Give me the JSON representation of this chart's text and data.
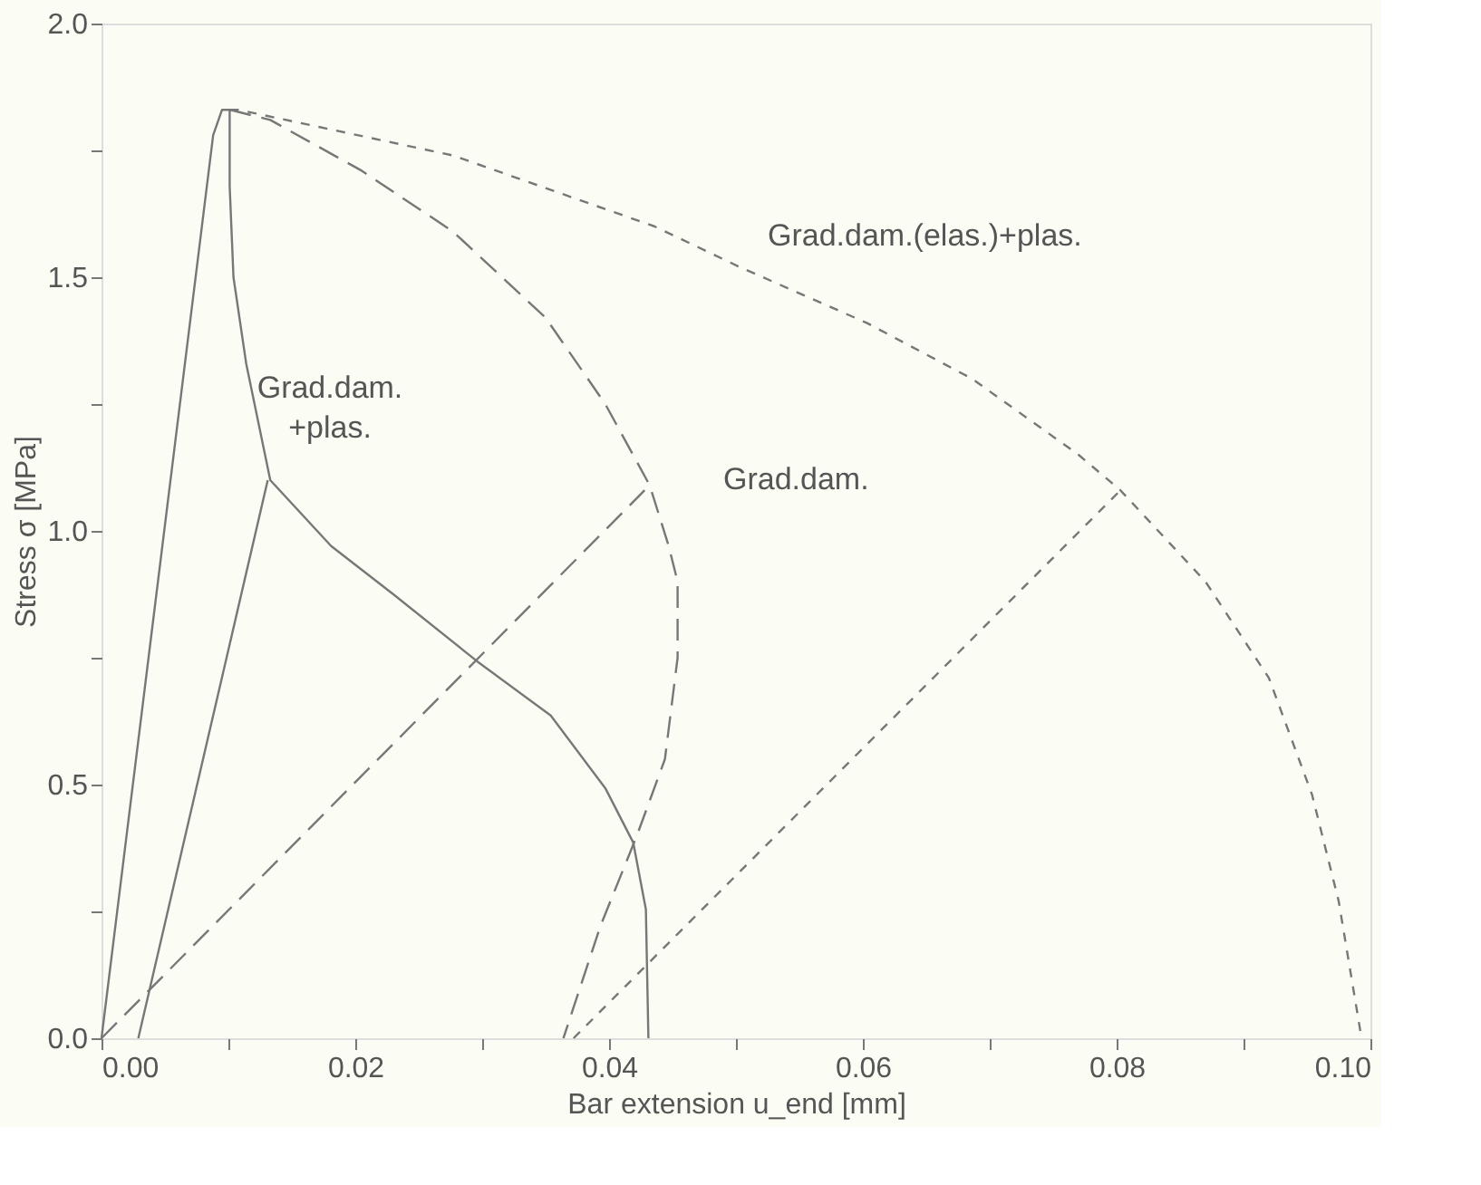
{
  "chart_data": {
    "type": "line",
    "xlabel": "Bar extension u_end [mm]",
    "ylabel": "Stress σ [MPa]",
    "xlim": [
      0,
      0.1
    ],
    "ylim": [
      0,
      2.0
    ],
    "xticks": [
      {
        "value": 0,
        "label": "0.00"
      },
      {
        "value": 0.01,
        "label": null
      },
      {
        "value": 0.02,
        "label": "0.02"
      },
      {
        "value": 0.03,
        "label": null
      },
      {
        "value": 0.04,
        "label": "0.04"
      },
      {
        "value": 0.05,
        "label": null
      },
      {
        "value": 0.06,
        "label": "0.06"
      },
      {
        "value": 0.07,
        "label": null
      },
      {
        "value": 0.08,
        "label": "0.08"
      },
      {
        "value": 0.09,
        "label": null
      },
      {
        "value": 0.1,
        "label": "0.10"
      }
    ],
    "yticks": [
      {
        "value": 0,
        "label": "0.0"
      },
      {
        "value": 0.25,
        "label": null
      },
      {
        "value": 0.5,
        "label": "0.5"
      },
      {
        "value": 0.75,
        "label": null
      },
      {
        "value": 1.0,
        "label": "1.0"
      },
      {
        "value": 1.25,
        "label": null
      },
      {
        "value": 1.5,
        "label": "1.5"
      },
      {
        "value": 1.75,
        "label": null
      },
      {
        "value": 2.0,
        "label": "2.0"
      }
    ],
    "grid": false,
    "marker": "none",
    "series": [
      {
        "color": "#777777",
        "line_style": "solid",
        "x": [
          0,
          0.0042,
          0.0088,
          0.0095,
          0.0101,
          0.0101,
          0.0104,
          0.0114,
          0.0133,
          0.0181,
          0.023,
          0.0296,
          0.0354,
          0.0397,
          0.0419,
          0.0429,
          0.0431
        ],
        "values": [
          0,
          0.85,
          1.78,
          1.83,
          1.83,
          1.68,
          1.5,
          1.33,
          1.1,
          0.97,
          0.875,
          0.743,
          0.636,
          0.493,
          0.386,
          0.254,
          0
        ]
      },
      {
        "color": "#777777",
        "line_style": "solid",
        "x": [
          0.0029,
          0.0131
        ],
        "values": [
          0,
          1.1
        ]
      },
      {
        "color": "#777777",
        "line_style": "dashed",
        "x": [
          0.0101,
          0.0133,
          0.0205,
          0.0277,
          0.035,
          0.0397,
          0.0432,
          0.0447,
          0.0454,
          0.0454,
          0.0444,
          0.0422,
          0.0393,
          0.0364
        ],
        "values": [
          1.83,
          1.81,
          1.71,
          1.59,
          1.42,
          1.25,
          1.09,
          0.97,
          0.9,
          0.75,
          0.55,
          0.4,
          0.22,
          0
        ]
      },
      {
        "color": "#777777",
        "line_style": "dashed",
        "x": [
          0,
          0.0428
        ],
        "values": [
          0,
          1.08
        ]
      },
      {
        "color": "#777777",
        "line_style": "dotted",
        "x": [
          0.0101,
          0.0108,
          0.0277,
          0.0436,
          0.0503,
          0.0603,
          0.0686,
          0.077,
          0.0803,
          0.087,
          0.092,
          0.0954,
          0.0975,
          0.0993
        ],
        "values": [
          1.83,
          1.83,
          1.74,
          1.6,
          1.52,
          1.41,
          1.3,
          1.15,
          1.08,
          0.9,
          0.71,
          0.48,
          0.27,
          0
        ]
      },
      {
        "color": "#777777",
        "line_style": "dotted",
        "x": [
          0.0372,
          0.0803
        ],
        "values": [
          0,
          1.08
        ]
      }
    ],
    "annotations": [
      "Grad.dam.\n+plas.",
      "Grad.dam.",
      "Grad.dam.(elas.)+plas."
    ]
  }
}
